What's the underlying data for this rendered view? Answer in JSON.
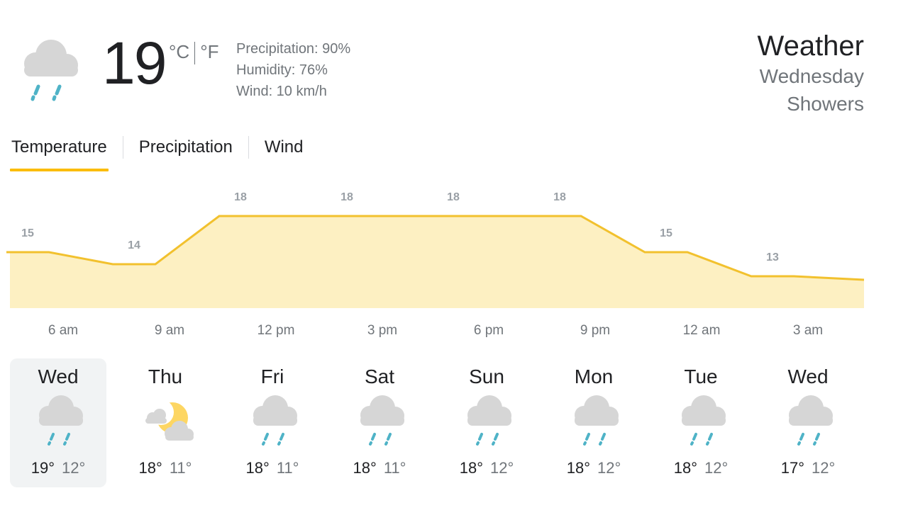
{
  "current": {
    "icon": "rain-cloud-icon",
    "temperature": "19",
    "unit_c": "°C",
    "unit_f": "°F",
    "precipitation": "Precipitation: 90%",
    "humidity": "Humidity: 76%",
    "wind": "Wind: 10 km/h"
  },
  "header": {
    "title": "Weather",
    "day": "Wednesday",
    "condition": "Showers"
  },
  "tabs": [
    {
      "label": "Temperature",
      "active": true
    },
    {
      "label": "Precipitation",
      "active": false
    },
    {
      "label": "Wind",
      "active": false
    }
  ],
  "colors": {
    "accent": "#fbbc04",
    "chart_line": "#f2c12e",
    "chart_fill": "#fdf0c2",
    "label_grey": "#70757a"
  },
  "chart_data": {
    "type": "area",
    "x": [
      "6 am",
      "9 am",
      "12 pm",
      "3 pm",
      "6 pm",
      "9 pm",
      "12 am",
      "3 am"
    ],
    "values": [
      15,
      14,
      18,
      18,
      18,
      18,
      15,
      13
    ],
    "data_labels": [
      "15",
      "14",
      "18",
      "18",
      "18",
      "18",
      "15",
      "13"
    ]
  },
  "forecast": [
    {
      "day": "Wed",
      "icon": "rain-cloud-icon",
      "high": "19°",
      "low": "12°",
      "selected": true
    },
    {
      "day": "Thu",
      "icon": "partly-cloudy-night-icon",
      "high": "18°",
      "low": "11°",
      "selected": false
    },
    {
      "day": "Fri",
      "icon": "rain-cloud-icon",
      "high": "18°",
      "low": "11°",
      "selected": false
    },
    {
      "day": "Sat",
      "icon": "rain-cloud-icon",
      "high": "18°",
      "low": "11°",
      "selected": false
    },
    {
      "day": "Sun",
      "icon": "rain-cloud-icon",
      "high": "18°",
      "low": "12°",
      "selected": false
    },
    {
      "day": "Mon",
      "icon": "rain-cloud-icon",
      "high": "18°",
      "low": "12°",
      "selected": false
    },
    {
      "day": "Tue",
      "icon": "rain-cloud-icon",
      "high": "18°",
      "low": "12°",
      "selected": false
    },
    {
      "day": "Wed",
      "icon": "rain-cloud-icon",
      "high": "17°",
      "low": "12°",
      "selected": false
    }
  ]
}
